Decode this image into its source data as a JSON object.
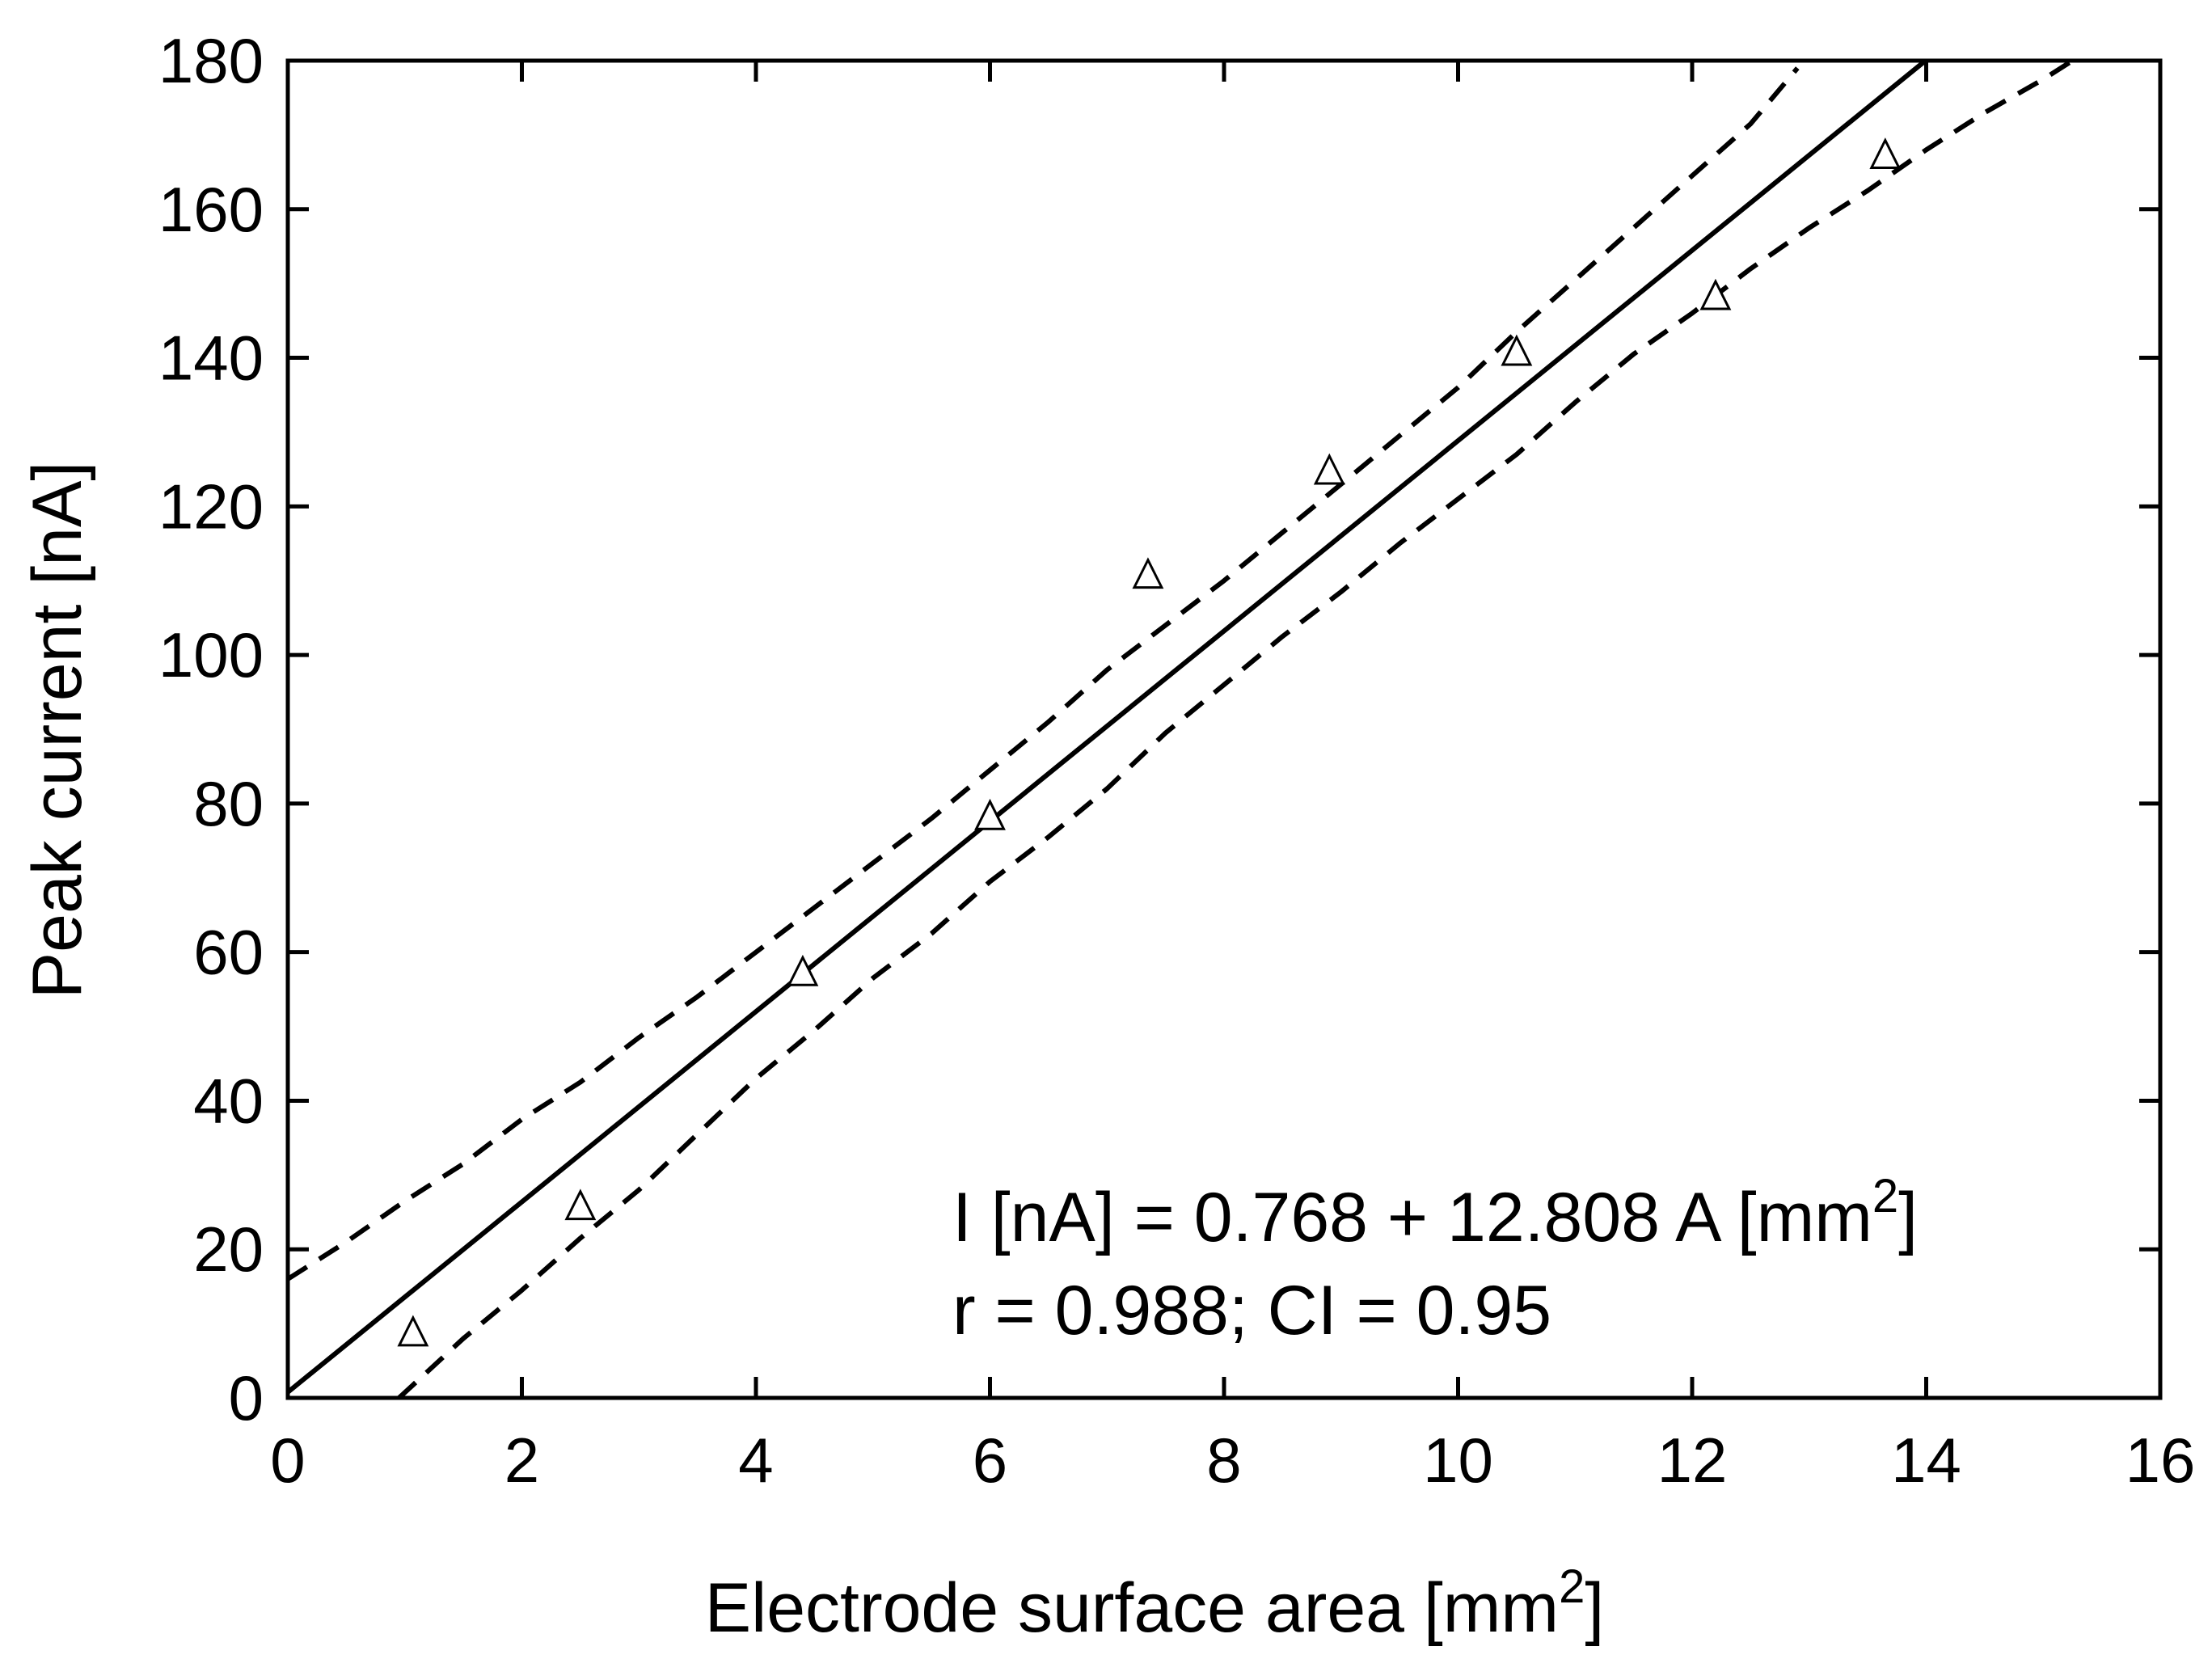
{
  "chart_data": {
    "type": "scatter",
    "title": "",
    "xlabel": {
      "text": "Electrode surface area [mm",
      "superscript": "2",
      "suffix": "]"
    },
    "ylabel": "Peak current [nA]",
    "xlim": [
      0,
      16
    ],
    "ylim": [
      0,
      180
    ],
    "xticks": [
      "0",
      "2",
      "4",
      "6",
      "8",
      "10",
      "12",
      "14",
      "16"
    ],
    "yticks": [
      "0",
      "20",
      "40",
      "60",
      "80",
      "100",
      "120",
      "140",
      "160",
      "180"
    ],
    "grid": false,
    "legend": "none",
    "series": [
      {
        "kind": "points",
        "marker": "open-triangle",
        "points": [
          {
            "x": 1.07,
            "y": 8.5
          },
          {
            "x": 2.5,
            "y": 25.5
          },
          {
            "x": 4.4,
            "y": 57.0
          },
          {
            "x": 6.0,
            "y": 78.0
          },
          {
            "x": 7.35,
            "y": 110.5
          },
          {
            "x": 8.9,
            "y": 124.5
          },
          {
            "x": 10.5,
            "y": 140.5
          },
          {
            "x": 12.2,
            "y": 148.0
          },
          {
            "x": 13.65,
            "y": 167.0
          }
        ]
      },
      {
        "kind": "fit-line",
        "style": "solid",
        "intercept": 0.768,
        "slope": 12.808
      },
      {
        "kind": "confidence-band-upper",
        "style": "dashed",
        "points": [
          {
            "x": 0.0,
            "y": 16.0
          },
          {
            "x": 0.5,
            "y": 21.0
          },
          {
            "x": 1.0,
            "y": 26.5
          },
          {
            "x": 1.5,
            "y": 31.5
          },
          {
            "x": 2.0,
            "y": 37.5
          },
          {
            "x": 2.5,
            "y": 42.5
          },
          {
            "x": 3.0,
            "y": 48.5
          },
          {
            "x": 3.5,
            "y": 54.0
          },
          {
            "x": 4.0,
            "y": 60.0
          },
          {
            "x": 4.5,
            "y": 66.0
          },
          {
            "x": 5.0,
            "y": 72.0
          },
          {
            "x": 5.5,
            "y": 78.0
          },
          {
            "x": 6.0,
            "y": 84.5
          },
          {
            "x": 6.5,
            "y": 91.0
          },
          {
            "x": 7.0,
            "y": 98.0
          },
          {
            "x": 7.5,
            "y": 104.0
          },
          {
            "x": 8.0,
            "y": 110.0
          },
          {
            "x": 8.5,
            "y": 116.5
          },
          {
            "x": 9.0,
            "y": 123.0
          },
          {
            "x": 9.5,
            "y": 129.5
          },
          {
            "x": 10.0,
            "y": 136.0
          },
          {
            "x": 10.5,
            "y": 143.5
          },
          {
            "x": 11.0,
            "y": 150.5
          },
          {
            "x": 11.5,
            "y": 157.5
          },
          {
            "x": 12.0,
            "y": 164.5
          },
          {
            "x": 12.5,
            "y": 171.5
          },
          {
            "x": 12.9,
            "y": 179.0
          }
        ]
      },
      {
        "kind": "confidence-band-lower",
        "style": "dashed",
        "points": [
          {
            "x": 0.95,
            "y": 0.0
          },
          {
            "x": 1.5,
            "y": 8.0
          },
          {
            "x": 2.0,
            "y": 14.5
          },
          {
            "x": 2.5,
            "y": 21.5
          },
          {
            "x": 3.0,
            "y": 28.0
          },
          {
            "x": 3.5,
            "y": 35.5
          },
          {
            "x": 4.0,
            "y": 43.0
          },
          {
            "x": 4.5,
            "y": 49.5
          },
          {
            "x": 5.0,
            "y": 56.5
          },
          {
            "x": 5.5,
            "y": 62.5
          },
          {
            "x": 6.0,
            "y": 69.5
          },
          {
            "x": 6.5,
            "y": 75.5
          },
          {
            "x": 7.0,
            "y": 82.0
          },
          {
            "x": 7.5,
            "y": 89.5
          },
          {
            "x": 8.0,
            "y": 96.0
          },
          {
            "x": 8.5,
            "y": 102.5
          },
          {
            "x": 9.0,
            "y": 108.5
          },
          {
            "x": 9.5,
            "y": 115.0
          },
          {
            "x": 10.0,
            "y": 121.0
          },
          {
            "x": 10.5,
            "y": 127.0
          },
          {
            "x": 11.0,
            "y": 134.0
          },
          {
            "x": 11.5,
            "y": 140.5
          },
          {
            "x": 12.0,
            "y": 146.0
          },
          {
            "x": 12.5,
            "y": 152.0
          },
          {
            "x": 13.0,
            "y": 157.5
          },
          {
            "x": 13.5,
            "y": 162.5
          },
          {
            "x": 14.0,
            "y": 168.0
          },
          {
            "x": 14.5,
            "y": 173.0
          },
          {
            "x": 15.0,
            "y": 177.5
          },
          {
            "x": 15.25,
            "y": 180.0
          }
        ]
      }
    ],
    "annotations": {
      "equation": {
        "text": "I [nA] = 0.768 + 12.808 A [mm",
        "superscript": "2",
        "suffix": "]"
      },
      "stats": "r = 0.988; CI = 0.95"
    }
  }
}
